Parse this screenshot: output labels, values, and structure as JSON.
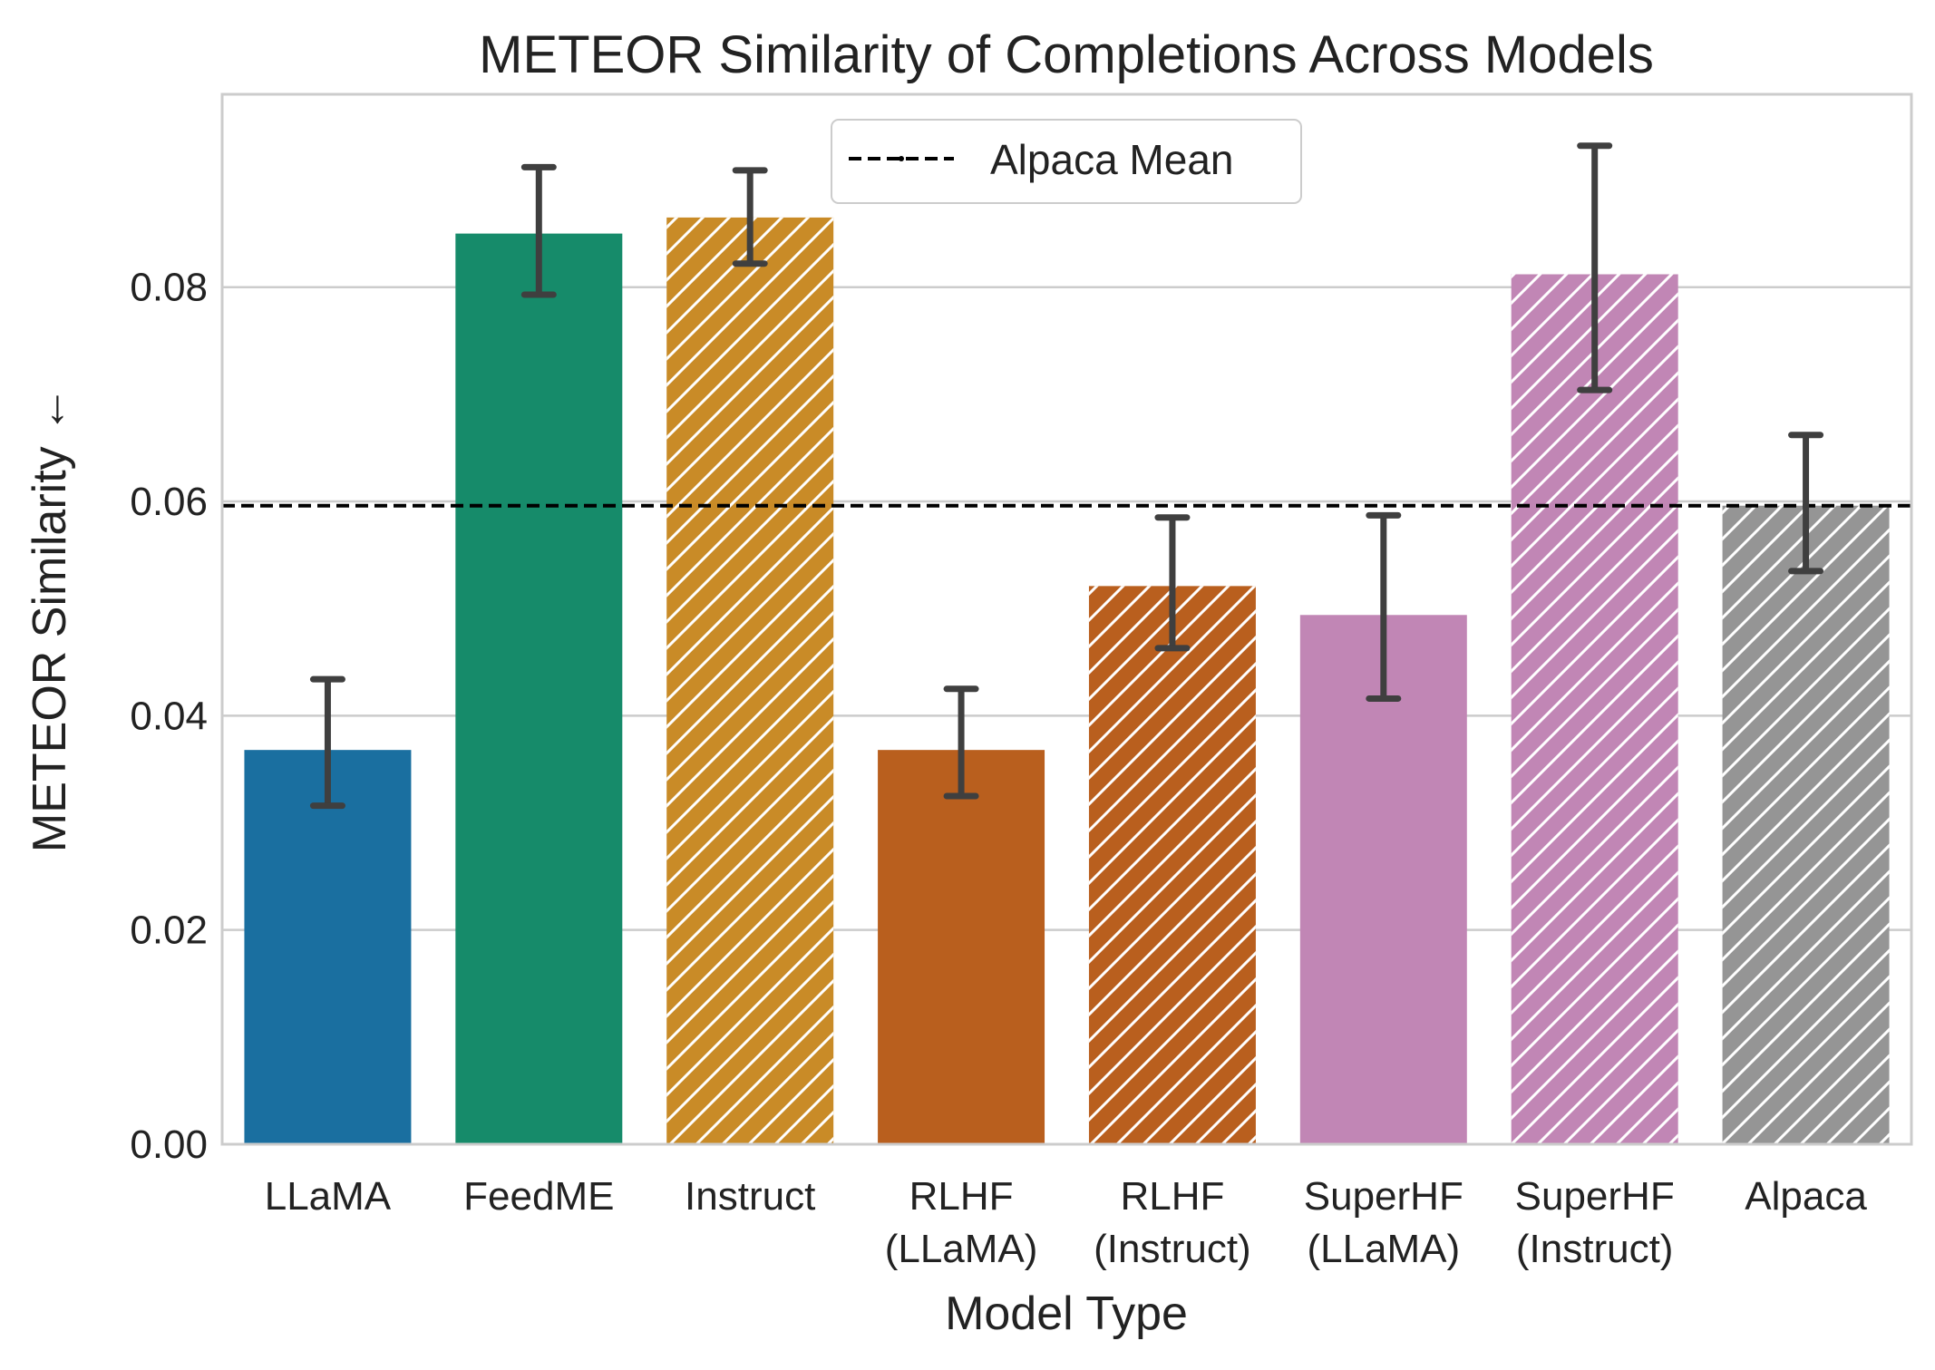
{
  "chart_data": {
    "type": "bar",
    "title": "METEOR Similarity of Completions Across Models",
    "xlabel": "Model Type",
    "ylabel": "METEOR Similarity ←",
    "ylim": [
      0,
      0.098
    ],
    "yticks": [
      0.0,
      0.02,
      0.04,
      0.06,
      0.08
    ],
    "ytick_labels": [
      "0.00",
      "0.02",
      "0.04",
      "0.06",
      "0.08"
    ],
    "grid": "horizontal",
    "legend_position": "top-center",
    "categories": [
      [
        "LLaMA"
      ],
      [
        "FeedME"
      ],
      [
        "Instruct"
      ],
      [
        "RLHF",
        "(LLaMA)"
      ],
      [
        "RLHF",
        "(Instruct)"
      ],
      [
        "SuperHF",
        "(LLaMA)"
      ],
      [
        "SuperHF",
        "(Instruct)"
      ],
      [
        "Alpaca"
      ]
    ],
    "values": [
      0.0368,
      0.085,
      0.0865,
      0.0368,
      0.0521,
      0.0494,
      0.0812,
      0.0596
    ],
    "error_low": [
      0.0316,
      0.0793,
      0.0822,
      0.0325,
      0.0463,
      0.0416,
      0.0704,
      0.0535
    ],
    "error_high": [
      0.0434,
      0.0912,
      0.0909,
      0.0425,
      0.0585,
      0.0587,
      0.0932,
      0.0662
    ],
    "colors": [
      "#1a6fa0",
      "#168b6a",
      "#c98b27",
      "#b95f1e",
      "#b95f1e",
      "#c186b5",
      "#c186b5",
      "#959595"
    ],
    "hatched": [
      false,
      false,
      true,
      false,
      true,
      false,
      true,
      true
    ],
    "reference_line": {
      "label": "Alpaca Mean",
      "value": 0.0596,
      "color": "#000000"
    },
    "legend": [
      {
        "label": "Alpaca Mean"
      }
    ]
  }
}
